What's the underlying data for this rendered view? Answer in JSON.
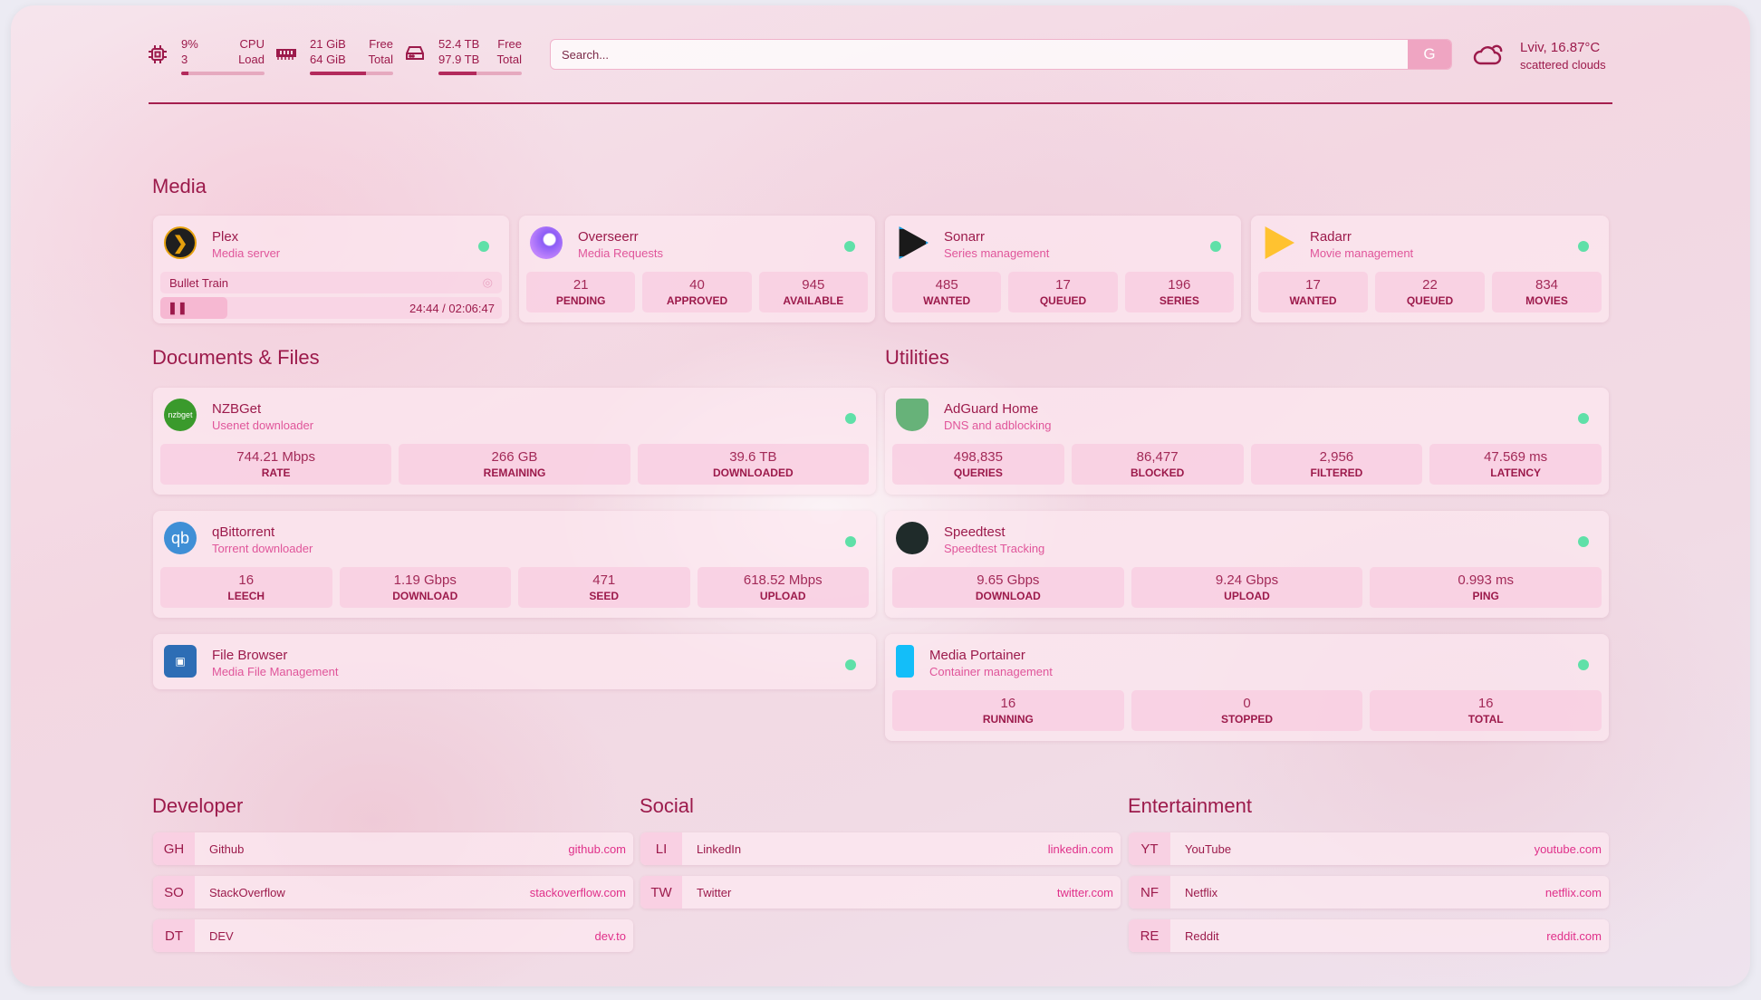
{
  "top": {
    "cpu": {
      "value": "9%",
      "cores": "3",
      "label1": "CPU",
      "label2": "Load",
      "percent": 9
    },
    "memory": {
      "free": "21 GiB",
      "total": "64 GiB",
      "label1": "Free",
      "label2": "Total",
      "percent": 67
    },
    "disk": {
      "free": "52.4 TB",
      "total": "97.9 TB",
      "label1": "Free",
      "label2": "Total",
      "percent": 46
    },
    "search": {
      "placeholder": "Search...",
      "button": "G"
    },
    "weather": {
      "location_temp": "Lviv, 16.87°C",
      "condition": "scattered clouds",
      "icon": "cloud-sun-icon"
    }
  },
  "colors": {
    "accent": "#9c1a4b",
    "subtitle": "#e0559a",
    "status_ok": "#5fe0a8",
    "link": "#e0308a"
  },
  "media": {
    "heading": "Media",
    "plex": {
      "name": "Plex",
      "desc": "Media server",
      "stream": "Bullet Train",
      "time": "24:44 / 02:06:47",
      "progress_percent": 19.5
    },
    "overseerr": {
      "name": "Overseerr",
      "desc": "Media Requests",
      "stats": [
        {
          "v": "21",
          "l": "PENDING"
        },
        {
          "v": "40",
          "l": "APPROVED"
        },
        {
          "v": "945",
          "l": "AVAILABLE"
        }
      ]
    },
    "sonarr": {
      "name": "Sonarr",
      "desc": "Series management",
      "stats": [
        {
          "v": "485",
          "l": "WANTED"
        },
        {
          "v": "17",
          "l": "QUEUED"
        },
        {
          "v": "196",
          "l": "SERIES"
        }
      ]
    },
    "radarr": {
      "name": "Radarr",
      "desc": "Movie management",
      "stats": [
        {
          "v": "17",
          "l": "WANTED"
        },
        {
          "v": "22",
          "l": "QUEUED"
        },
        {
          "v": "834",
          "l": "MOVIES"
        }
      ]
    }
  },
  "docs": {
    "heading": "Documents & Files",
    "nzbget": {
      "name": "NZBGet",
      "desc": "Usenet downloader",
      "icon_text": "nzbget",
      "stats": [
        {
          "v": "744.21 Mbps",
          "l": "RATE"
        },
        {
          "v": "266 GB",
          "l": "REMAINING"
        },
        {
          "v": "39.6 TB",
          "l": "DOWNLOADED"
        }
      ]
    },
    "qbittorrent": {
      "name": "qBittorrent",
      "desc": "Torrent downloader",
      "icon_text": "qb",
      "stats": [
        {
          "v": "16",
          "l": "LEECH"
        },
        {
          "v": "1.19 Gbps",
          "l": "DOWNLOAD"
        },
        {
          "v": "471",
          "l": "SEED"
        },
        {
          "v": "618.52 Mbps",
          "l": "UPLOAD"
        }
      ]
    },
    "filebrowser": {
      "name": "File Browser",
      "desc": "Media File Management"
    }
  },
  "utilities": {
    "heading": "Utilities",
    "adguard": {
      "name": "AdGuard Home",
      "desc": "DNS and adblocking",
      "stats": [
        {
          "v": "498,835",
          "l": "QUERIES"
        },
        {
          "v": "86,477",
          "l": "BLOCKED"
        },
        {
          "v": "2,956",
          "l": "FILTERED"
        },
        {
          "v": "47.569 ms",
          "l": "LATENCY"
        }
      ]
    },
    "speedtest": {
      "name": "Speedtest",
      "desc": "Speedtest Tracking",
      "stats": [
        {
          "v": "9.65 Gbps",
          "l": "DOWNLOAD"
        },
        {
          "v": "9.24 Gbps",
          "l": "UPLOAD"
        },
        {
          "v": "0.993 ms",
          "l": "PING"
        }
      ]
    },
    "portainer": {
      "name": "Media Portainer",
      "desc": "Container management",
      "stats": [
        {
          "v": "16",
          "l": "RUNNING"
        },
        {
          "v": "0",
          "l": "STOPPED"
        },
        {
          "v": "16",
          "l": "TOTAL"
        }
      ]
    }
  },
  "bookmarks": [
    {
      "heading": "Developer",
      "items": [
        {
          "abbr": "GH",
          "name": "Github",
          "url": "github.com"
        },
        {
          "abbr": "SO",
          "name": "StackOverflow",
          "url": "stackoverflow.com"
        },
        {
          "abbr": "DT",
          "name": "DEV",
          "url": "dev.to"
        }
      ]
    },
    {
      "heading": "Social",
      "items": [
        {
          "abbr": "LI",
          "name": "LinkedIn",
          "url": "linkedin.com"
        },
        {
          "abbr": "TW",
          "name": "Twitter",
          "url": "twitter.com"
        }
      ]
    },
    {
      "heading": "Entertainment",
      "items": [
        {
          "abbr": "YT",
          "name": "YouTube",
          "url": "youtube.com"
        },
        {
          "abbr": "NF",
          "name": "Netflix",
          "url": "netflix.com"
        },
        {
          "abbr": "RE",
          "name": "Reddit",
          "url": "reddit.com"
        }
      ]
    }
  ]
}
